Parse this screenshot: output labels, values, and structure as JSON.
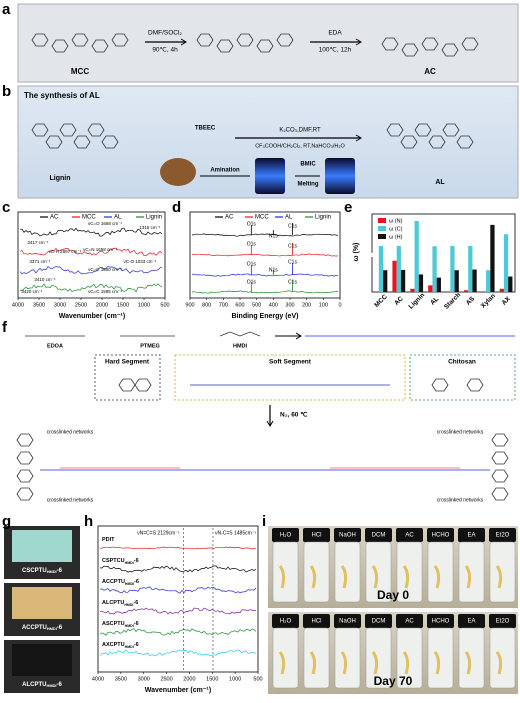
{
  "panels": {
    "a": {
      "label": "a",
      "reagent1": "DMF/SOCl₂",
      "cond1": "90℃, 4h",
      "reagent2": "EDA",
      "cond2": "100℃, 12h",
      "names": [
        "MCC",
        "AC"
      ]
    },
    "b": {
      "label": "b",
      "title": "The synthesis of AL",
      "names": [
        "Lignin",
        "TBEEC",
        "AL"
      ],
      "reagents1": "K₂CO₃,DMF,RT",
      "reagents2": "CF₃COOH/CH₂Cl₂, RT,NaHCO₃/H₂O",
      "steps": [
        "Amination",
        "BMIC",
        "Melting"
      ]
    },
    "c": {
      "label": "c",
      "legend": [
        "AC",
        "MCC",
        "AL",
        "Lignin"
      ],
      "xticks": [
        4000,
        3500,
        3000,
        2500,
        2000,
        1500,
        1000,
        500
      ],
      "xlabel": "Wavenumber (cm⁻¹)",
      "annotations": [
        "νC=O 1668 cm⁻¹",
        "1315 cm⁻¹",
        "3417 cm⁻¹",
        "νC-H 2897 cm⁻¹",
        "νC=N 1658 cm⁻¹",
        "νC-O 1033 cm⁻¹",
        "3371 cm⁻¹",
        "νC=C 1600 cm⁻¹",
        "3410 cm⁻¹",
        "3420 cm⁻¹",
        "νC=C 1595 cm⁻¹"
      ]
    },
    "d": {
      "label": "d",
      "legend": [
        "AC",
        "MCC",
        "AL",
        "Lignin"
      ],
      "xticks": [
        900,
        800,
        700,
        600,
        500,
        400,
        300,
        200,
        100,
        0
      ],
      "xlabel": "Binding Energy (eV)",
      "peaks": [
        "O1s",
        "N1s",
        "C1s",
        "O1s",
        "C1s",
        "O1s",
        "N1s",
        "C1s",
        "O1s",
        "C1s"
      ]
    },
    "e": {
      "label": "e"
    },
    "f": {
      "label": "f",
      "monomers": [
        "EDOA",
        "PTMEG",
        "HMDI"
      ],
      "segments": [
        "Hard Segment",
        "Soft Segment",
        "Chitosan"
      ],
      "condition": "N₂, 60 ℃",
      "network": "crosslinked networks"
    },
    "g": {
      "label": "g",
      "samples": [
        {
          "text": "CSCPTU",
          "sub": "HMDI",
          "suffix": "-6"
        },
        {
          "text": "ACCPTU",
          "sub": "HMDI",
          "suffix": "-6"
        },
        {
          "text": "ALCPTU",
          "sub": "HMDI",
          "suffix": "-6"
        }
      ]
    },
    "h": {
      "label": "h",
      "samples": [
        {
          "text": "PDIT",
          "sub": "",
          "suffix": ""
        },
        {
          "text": "CSPTCU",
          "sub": "HMDI",
          "suffix": "-6"
        },
        {
          "text": "ACCPTU",
          "sub": "HMDI",
          "suffix": "-6"
        },
        {
          "text": "ALCPTU",
          "sub": "HMDI",
          "suffix": "-6"
        },
        {
          "text": "ASCPTU",
          "sub": "HMDI",
          "suffix": "-6"
        },
        {
          "text": "AXCPTU",
          "sub": "HMDI",
          "suffix": "-6"
        }
      ],
      "annotations": [
        "νN=C=S 2129cm⁻¹",
        "νN-C=S 1485cm⁻¹"
      ],
      "xticks": [
        4000,
        3500,
        3000,
        2500,
        2000,
        1500,
        1000,
        500
      ],
      "xlabel": "Wavenumber (cm⁻¹)"
    },
    "i": {
      "label": "i",
      "solvents": [
        "H₂O",
        "HCl",
        "NaOH",
        "DCM",
        "AC",
        "HCHO",
        "EA",
        "Et2O"
      ],
      "days": [
        "Day 0",
        "Day 70"
      ]
    }
  },
  "chart_data": {
    "type": "bar",
    "ylabel": "ω (%)",
    "categories": [
      "MCC",
      "AC",
      "Lignin",
      "AL",
      "Starch",
      "AS",
      "Xylan",
      "AX"
    ],
    "series": [
      {
        "name": "ω (N)",
        "color": "#e8141e",
        "values": [
          0,
          8.9,
          0.9,
          1.9,
          0,
          0.5,
          0,
          0.9
        ]
      },
      {
        "name": "ω (C)",
        "color": "#4ec9d8",
        "values": [
          44.4,
          44.5,
          60.5,
          44.3,
          44.4,
          44.5,
          6.2,
          52
        ]
      },
      {
        "name": "ω (H)",
        "color": "#111111",
        "values": [
          6.2,
          6.3,
          5,
          4.1,
          6.2,
          6.4,
          58,
          4.4
        ]
      }
    ],
    "ylim": [
      0,
      65
    ],
    "axis_break": [
      10,
      40
    ]
  }
}
